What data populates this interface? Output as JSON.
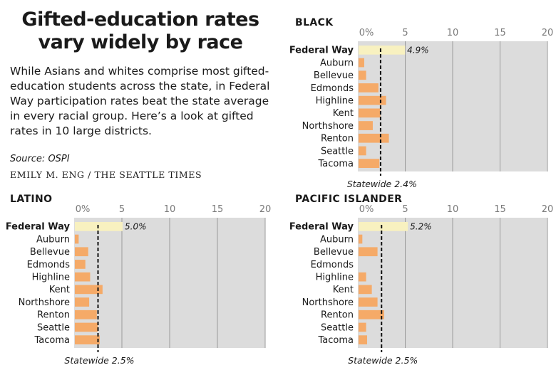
{
  "headline": "Gifted-education rates vary widely by race",
  "intro": "While Asians and whites comprise most gifted-education students across the state, in Federal Way participation rates beat the state average in every racial group. Here’s a look at gifted rates in 10 large districts.",
  "source": "Source: OSPI",
  "credit": "EMILY M. ENG / THE SEATTLE TIMES",
  "colors": {
    "bar": "#f5aa68",
    "highlight_bar": "#f8f1c0",
    "plot_bg": "#dcdcdc",
    "grid": "#9a9a9a",
    "reference": "#111111"
  },
  "chart_data": [
    {
      "type": "bar",
      "orientation": "horizontal",
      "title": "BLACK",
      "categories": [
        "Federal Way",
        "Auburn",
        "Bellevue",
        "Edmonds",
        "Highline",
        "Kent",
        "Northshore",
        "Renton",
        "Seattle",
        "Tacoma"
      ],
      "values": [
        4.9,
        0.6,
        0.8,
        2.1,
        2.9,
        2.3,
        1.5,
        3.2,
        0.8,
        2.2
      ],
      "highlight": "Federal Way",
      "highlight_label": "4.9%",
      "xlim": [
        0,
        20
      ],
      "xticks": [
        "0%",
        "5",
        "10",
        "15",
        "20"
      ],
      "reference": {
        "value": 2.4,
        "label": "Statewide 2.4%"
      }
    },
    {
      "type": "bar",
      "orientation": "horizontal",
      "title": "LATINO",
      "categories": [
        "Federal Way",
        "Auburn",
        "Bellevue",
        "Edmonds",
        "Highline",
        "Kent",
        "Northshore",
        "Renton",
        "Seattle",
        "Tacoma"
      ],
      "values": [
        5.0,
        0.4,
        1.4,
        1.1,
        1.6,
        2.9,
        1.5,
        2.3,
        2.4,
        2.6
      ],
      "highlight": "Federal Way",
      "highlight_label": "5.0%",
      "xlim": [
        0,
        20
      ],
      "xticks": [
        "0%",
        "5",
        "10",
        "15",
        "20"
      ],
      "reference": {
        "value": 2.5,
        "label": "Statewide 2.5%"
      }
    },
    {
      "type": "bar",
      "orientation": "horizontal",
      "title": "PACIFIC ISLANDER",
      "categories": [
        "Federal Way",
        "Auburn",
        "Bellevue",
        "Edmonds",
        "Highline",
        "Kent",
        "Northshore",
        "Renton",
        "Seattle",
        "Tacoma"
      ],
      "values": [
        5.2,
        0.4,
        2.0,
        0,
        0.8,
        1.4,
        2.0,
        2.7,
        0.8,
        0.9
      ],
      "highlight": "Federal Way",
      "highlight_label": "5.2%",
      "xlim": [
        0,
        20
      ],
      "xticks": [
        "0%",
        "5",
        "10",
        "15",
        "20"
      ],
      "reference": {
        "value": 2.5,
        "label": "Statewide 2.5%"
      }
    }
  ]
}
